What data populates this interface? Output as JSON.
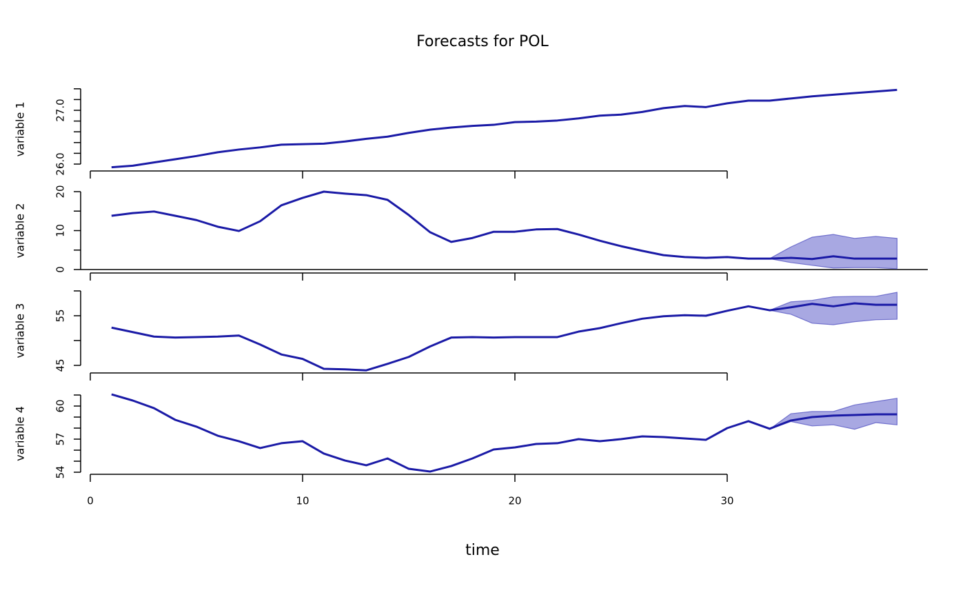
{
  "title": "Forecasts for POL",
  "x_label": "time",
  "chart_data": [
    {
      "type": "line",
      "y_label": "variable 1",
      "xlim": [
        0,
        38
      ],
      "xticks": [
        0,
        10,
        20,
        30
      ],
      "ylim": [
        25.9,
        27.4
      ],
      "yticks": [
        {
          "value": 26,
          "label": "26.0"
        },
        {
          "value": 27,
          "label": "27.0"
        }
      ],
      "minor_yticks": [
        26.2,
        26.4,
        26.6,
        26.8,
        27.2,
        27.4
      ],
      "color": "#1a1aa6",
      "x": [
        1,
        2,
        3,
        4,
        5,
        6,
        7,
        8,
        9,
        10,
        11,
        12,
        13,
        14,
        15,
        16,
        17,
        18,
        19,
        20,
        21,
        22,
        23,
        24,
        25,
        26,
        27,
        28,
        29,
        30,
        31,
        32,
        33,
        34,
        35,
        36,
        37,
        38
      ],
      "values": [
        25.94,
        25.97,
        26.03,
        26.09,
        26.15,
        26.22,
        26.27,
        26.31,
        26.36,
        26.37,
        26.38,
        26.42,
        26.47,
        26.51,
        26.58,
        26.64,
        26.68,
        26.71,
        26.73,
        26.78,
        26.79,
        26.81,
        26.85,
        26.9,
        26.92,
        26.97,
        27.04,
        27.08,
        27.06,
        27.13,
        27.18,
        27.18,
        27.22,
        27.26,
        27.29,
        27.32,
        27.35,
        27.38
      ]
    },
    {
      "type": "line",
      "y_label": "variable 2",
      "xlim": [
        0,
        38
      ],
      "xticks": [
        0,
        10,
        20,
        30
      ],
      "ylim": [
        0,
        20
      ],
      "yticks": [
        0,
        10,
        20
      ],
      "minor_yticks": [
        5,
        15
      ],
      "hline": 0,
      "color": "#1a1aa6",
      "band_color": "#a3a3e0",
      "x": [
        1,
        2,
        3,
        4,
        5,
        6,
        7,
        8,
        9,
        10,
        11,
        12,
        13,
        14,
        15,
        16,
        17,
        18,
        19,
        20,
        21,
        22,
        23,
        24,
        25,
        26,
        27,
        28,
        29,
        30,
        31,
        32,
        33,
        34,
        35,
        36,
        37,
        38
      ],
      "values": [
        13.8,
        14.5,
        14.9,
        13.8,
        12.7,
        11.0,
        9.9,
        12.4,
        16.5,
        18.4,
        20.0,
        19.5,
        19.1,
        17.9,
        14.0,
        9.6,
        7.1,
        8.1,
        9.7,
        9.7,
        10.3,
        10.4,
        9.0,
        7.4,
        6.0,
        4.8,
        3.7,
        3.2,
        3.0,
        3.2,
        2.8,
        2.8,
        3.0,
        2.7,
        3.4,
        2.8,
        2.8,
        2.8
      ],
      "band_upper": [
        null,
        null,
        null,
        null,
        null,
        null,
        null,
        null,
        null,
        null,
        null,
        null,
        null,
        null,
        null,
        null,
        null,
        null,
        null,
        null,
        null,
        null,
        null,
        null,
        null,
        null,
        null,
        null,
        null,
        null,
        null,
        2.8,
        5.8,
        8.3,
        9.0,
        8.0,
        8.5,
        8.0
      ],
      "band_lower": [
        null,
        null,
        null,
        null,
        null,
        null,
        null,
        null,
        null,
        null,
        null,
        null,
        null,
        null,
        null,
        null,
        null,
        null,
        null,
        null,
        null,
        null,
        null,
        null,
        null,
        null,
        null,
        null,
        null,
        null,
        null,
        2.8,
        1.8,
        1.1,
        0.4,
        0.5,
        0.5,
        0.2
      ]
    },
    {
      "type": "line",
      "y_label": "variable 3",
      "xlim": [
        0,
        38
      ],
      "xticks": [
        0,
        10,
        20,
        30
      ],
      "ylim": [
        44,
        60
      ],
      "yticks": [
        45,
        55
      ],
      "minor_yticks": [
        50,
        60
      ],
      "color": "#1a1aa6",
      "band_color": "#a3a3e0",
      "x": [
        1,
        2,
        3,
        4,
        5,
        6,
        7,
        8,
        9,
        10,
        11,
        12,
        13,
        14,
        15,
        16,
        17,
        18,
        19,
        20,
        21,
        22,
        23,
        24,
        25,
        26,
        27,
        28,
        29,
        30,
        31,
        32,
        33,
        34,
        35,
        36,
        37,
        38
      ],
      "values": [
        52.6,
        51.7,
        50.8,
        50.6,
        50.7,
        50.8,
        51.0,
        49.2,
        47.2,
        46.3,
        44.3,
        44.2,
        44.0,
        45.3,
        46.7,
        48.8,
        50.6,
        50.7,
        50.6,
        50.7,
        50.7,
        50.7,
        51.8,
        52.5,
        53.5,
        54.4,
        54.9,
        55.1,
        55.0,
        56.0,
        56.9,
        56.1,
        56.7,
        57.4,
        56.9,
        57.5,
        57.2,
        57.2
      ],
      "band_upper": [
        null,
        null,
        null,
        null,
        null,
        null,
        null,
        null,
        null,
        null,
        null,
        null,
        null,
        null,
        null,
        null,
        null,
        null,
        null,
        null,
        null,
        null,
        null,
        null,
        null,
        null,
        null,
        null,
        null,
        null,
        null,
        56.1,
        57.8,
        58.1,
        58.8,
        58.9,
        58.9,
        59.7
      ],
      "band_lower": [
        null,
        null,
        null,
        null,
        null,
        null,
        null,
        null,
        null,
        null,
        null,
        null,
        null,
        null,
        null,
        null,
        null,
        null,
        null,
        null,
        null,
        null,
        null,
        null,
        null,
        null,
        null,
        null,
        null,
        null,
        null,
        56.1,
        55.3,
        53.5,
        53.2,
        53.8,
        54.2,
        54.3
      ]
    },
    {
      "type": "line",
      "y_label": "variable 4",
      "xlim": [
        0,
        38
      ],
      "xticks": [
        0,
        10,
        20,
        30
      ],
      "ylim": [
        54,
        61
      ],
      "yticks": [
        54,
        57,
        60
      ],
      "minor_yticks": [
        55,
        56,
        58,
        59,
        61
      ],
      "color": "#1a1aa6",
      "band_color": "#a3a3e0",
      "x": [
        1,
        2,
        3,
        4,
        5,
        6,
        7,
        8,
        9,
        10,
        11,
        12,
        13,
        14,
        15,
        16,
        17,
        18,
        19,
        20,
        21,
        22,
        23,
        24,
        25,
        26,
        27,
        28,
        29,
        30,
        31,
        32,
        33,
        34,
        35,
        36,
        37,
        38
      ],
      "values": [
        61.06,
        60.5,
        59.81,
        58.75,
        58.13,
        57.31,
        56.81,
        56.19,
        56.63,
        56.81,
        55.69,
        55.06,
        54.63,
        55.25,
        54.31,
        54.06,
        54.56,
        55.25,
        56.06,
        56.25,
        56.56,
        56.63,
        57.0,
        56.81,
        57.0,
        57.25,
        57.19,
        57.06,
        56.94,
        58.0,
        58.63,
        57.94,
        58.69,
        59.0,
        59.13,
        59.19,
        59.25,
        59.25
      ],
      "band_upper": [
        null,
        null,
        null,
        null,
        null,
        null,
        null,
        null,
        null,
        null,
        null,
        null,
        null,
        null,
        null,
        null,
        null,
        null,
        null,
        null,
        null,
        null,
        null,
        null,
        null,
        null,
        null,
        null,
        null,
        null,
        null,
        57.9,
        59.3,
        59.5,
        59.5,
        60.1,
        60.4,
        60.7
      ],
      "band_lower": [
        null,
        null,
        null,
        null,
        null,
        null,
        null,
        null,
        null,
        null,
        null,
        null,
        null,
        null,
        null,
        null,
        null,
        null,
        null,
        null,
        null,
        null,
        null,
        null,
        null,
        null,
        null,
        null,
        null,
        null,
        null,
        57.9,
        58.6,
        58.2,
        58.3,
        57.9,
        58.5,
        58.3
      ]
    }
  ]
}
